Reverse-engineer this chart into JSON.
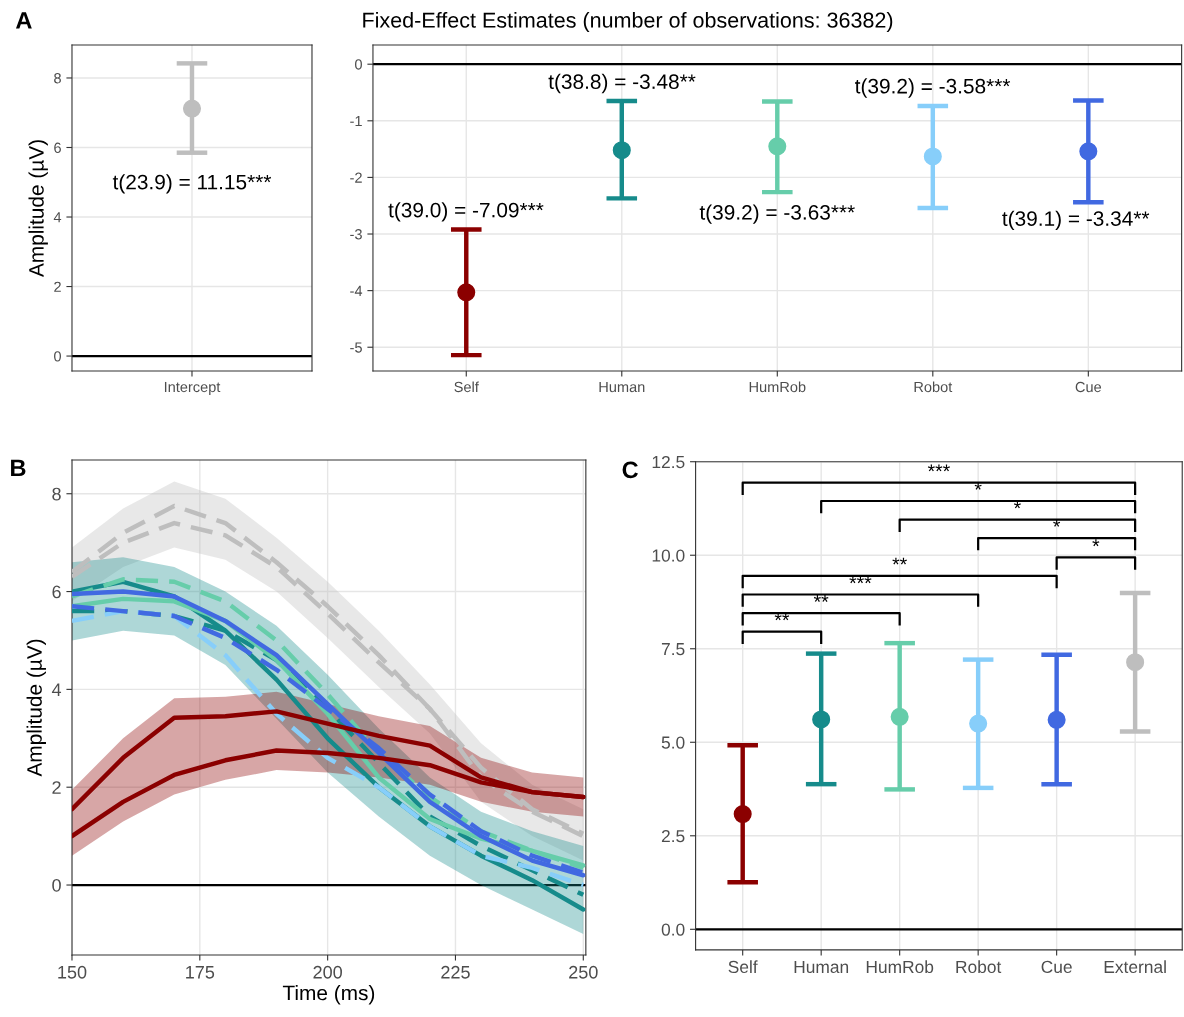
{
  "chart_data": [
    {
      "type": "scatter",
      "ylabel": "Amplitude (µV)",
      "categories": [
        "Intercept"
      ],
      "values": [
        7.12
      ],
      "colors": [
        "#bebebe"
      ],
      "errors": [
        [
          5.85,
          8.42
        ]
      ],
      "marker": "circle",
      "ylim": [
        -0.43,
        8.95
      ],
      "yticks": [
        0,
        2,
        4,
        6,
        8
      ],
      "grid": true,
      "ref_lines": [
        {
          "axis": "y",
          "value": 0,
          "color": "#000000"
        }
      ],
      "annotations": [
        "A",
        "t(23.9) = 11.15***"
      ]
    },
    {
      "type": "scatter",
      "title": "Fixed-Effect Estimates (number of observations: 36382)",
      "categories": [
        "Self",
        "Human",
        "HumRob",
        "Robot",
        "Cue"
      ],
      "values": [
        -4.03,
        -1.52,
        -1.45,
        -1.63,
        -1.54
      ],
      "colors": [
        "#8b0000",
        "#168b8b",
        "#66cdaa",
        "#87cefa",
        "#4169e1"
      ],
      "errors": [
        [
          -5.14,
          -2.92
        ],
        [
          -2.37,
          -0.65
        ],
        [
          -2.26,
          -0.66
        ],
        [
          -2.54,
          -0.74
        ],
        [
          -2.44,
          -0.64
        ]
      ],
      "marker": "circle",
      "ylim": [
        -5.42,
        0.34
      ],
      "yticks": [
        -5,
        -4,
        -3,
        -2,
        -1,
        0
      ],
      "grid": true,
      "ref_lines": [
        {
          "axis": "y",
          "value": 0,
          "color": "#000000"
        }
      ],
      "annotations": [
        "t(39.0) = -7.09***",
        "t(38.8) = -3.48**",
        "t(39.2) = -3.63***",
        "t(39.2) = -3.58***",
        "t(39.1) = -3.34**"
      ]
    },
    {
      "type": "line",
      "xlabel": "Time (ms)",
      "ylabel": "Amplitude (µV)",
      "x": [
        150,
        160,
        170,
        180,
        190,
        200,
        210,
        220,
        230,
        240,
        250
      ],
      "xlim": [
        150,
        250.5
      ],
      "xticks": [
        150,
        175,
        200,
        225,
        250
      ],
      "ylim": [
        -1.43,
        8.69
      ],
      "yticks": [
        0,
        2,
        4,
        6,
        8
      ],
      "grid": true,
      "ref_lines": [
        {
          "axis": "y",
          "value": 0,
          "color": "#000000"
        }
      ],
      "series": [
        {
          "color": "#bebebe",
          "line_style": "dashed",
          "values": [
            6.4,
            7.2,
            7.75,
            7.4,
            6.6,
            5.7,
            4.7,
            3.6,
            2.2,
            1.5,
            1.0
          ],
          "lower": [
            5.8,
            6.5,
            6.9,
            6.65,
            6.0,
            5.05,
            4.05,
            3.1,
            1.7,
            1.0,
            0.5
          ],
          "upper": [
            6.9,
            7.7,
            8.25,
            7.9,
            7.1,
            6.2,
            5.2,
            4.1,
            2.9,
            2.05,
            1.55
          ]
        },
        {
          "color": "#bebebe",
          "line_style": "dashed",
          "values": [
            6.3,
            7.0,
            7.4,
            7.15,
            6.5,
            5.55,
            4.55,
            3.6,
            2.4,
            1.55,
            1.05
          ]
        },
        {
          "color": "#168b8b",
          "line_style": "solid",
          "values": [
            6.0,
            6.2,
            5.9,
            5.2,
            4.2,
            3.0,
            2.0,
            1.2,
            0.6,
            0.1,
            -0.5
          ],
          "lower": [
            5.0,
            5.2,
            5.1,
            4.5,
            3.4,
            2.3,
            1.4,
            0.6,
            0.0,
            -0.5,
            -1.0
          ],
          "upper": [
            6.6,
            6.7,
            6.5,
            6.0,
            5.3,
            4.3,
            3.2,
            2.2,
            1.5,
            1.1,
            0.8
          ]
        },
        {
          "color": "#168b8b",
          "line_style": "dashed",
          "values": [
            5.6,
            5.6,
            5.5,
            5.2,
            4.6,
            3.6,
            2.5,
            1.4,
            0.8,
            0.3,
            -0.2
          ]
        },
        {
          "color": "#66cdaa",
          "line_style": "solid",
          "values": [
            5.7,
            5.85,
            5.8,
            5.4,
            4.6,
            3.5,
            2.2,
            1.35,
            0.95,
            0.7,
            0.4
          ]
        },
        {
          "color": "#66cdaa",
          "line_style": "dashed",
          "values": [
            5.9,
            6.25,
            6.2,
            5.8,
            5.0,
            3.9,
            2.7,
            1.8,
            1.1,
            0.7,
            0.35
          ]
        },
        {
          "color": "#87cefa",
          "line_style": "dashed",
          "values": [
            5.4,
            5.6,
            5.5,
            4.7,
            3.5,
            2.6,
            2.0,
            1.2,
            0.6,
            0.35,
            0.0
          ]
        },
        {
          "color": "#4169e1",
          "line_style": "solid",
          "values": [
            5.95,
            6.0,
            5.9,
            5.4,
            4.7,
            3.7,
            2.7,
            1.7,
            1.0,
            0.5,
            0.2
          ]
        },
        {
          "color": "#4169e1",
          "line_style": "dashed",
          "values": [
            5.7,
            5.6,
            5.5,
            5.05,
            4.4,
            3.6,
            2.8,
            1.85,
            1.1,
            0.6,
            0.25
          ]
        },
        {
          "color": "#8b0000",
          "line_style": "solid",
          "values": [
            1.55,
            2.6,
            3.42,
            3.45,
            3.55,
            3.3,
            3.05,
            2.85,
            2.2,
            1.9,
            1.8
          ],
          "lower": [
            0.6,
            1.3,
            1.85,
            2.15,
            2.35,
            2.3,
            2.2,
            2.05,
            1.7,
            1.5,
            1.4
          ],
          "upper": [
            1.95,
            3.0,
            3.82,
            3.85,
            3.95,
            3.7,
            3.45,
            3.25,
            2.6,
            2.3,
            2.2
          ]
        },
        {
          "color": "#8b0000",
          "line_style": "solid",
          "values": [
            1.0,
            1.7,
            2.25,
            2.55,
            2.75,
            2.7,
            2.6,
            2.45,
            2.1,
            1.9,
            1.8
          ]
        }
      ],
      "annotations": [
        "B"
      ]
    },
    {
      "type": "scatter",
      "categories": [
        "Self",
        "Human",
        "HumRob",
        "Robot",
        "Cue",
        "External"
      ],
      "values": [
        3.08,
        5.61,
        5.68,
        5.5,
        5.6,
        7.14
      ],
      "colors": [
        "#8b0000",
        "#168b8b",
        "#66cdaa",
        "#87cefa",
        "#4169e1",
        "#bebebe"
      ],
      "errors": [
        [
          1.26,
          4.92
        ],
        [
          3.88,
          7.37
        ],
        [
          3.74,
          7.65
        ],
        [
          3.78,
          7.21
        ],
        [
          3.88,
          7.34
        ],
        [
          5.29,
          8.99
        ]
      ],
      "marker": "circle",
      "ylim": [
        -0.55,
        12.5
      ],
      "yticks": [
        {
          "value": 0,
          "label": "0.0"
        },
        {
          "value": 2.5,
          "label": "2.5"
        },
        {
          "value": 5,
          "label": "5.0"
        },
        {
          "value": 7.5,
          "label": "7.5"
        },
        {
          "value": 10,
          "label": "10.0"
        },
        {
          "value": 12.5,
          "label": "12.5"
        }
      ],
      "grid": true,
      "ref_lines": [
        {
          "axis": "y",
          "value": 0,
          "color": "#000000"
        }
      ],
      "annotations": [
        "C",
        "***",
        "*",
        "*",
        "*",
        "*",
        "**",
        "***",
        "**",
        "**"
      ]
    }
  ]
}
